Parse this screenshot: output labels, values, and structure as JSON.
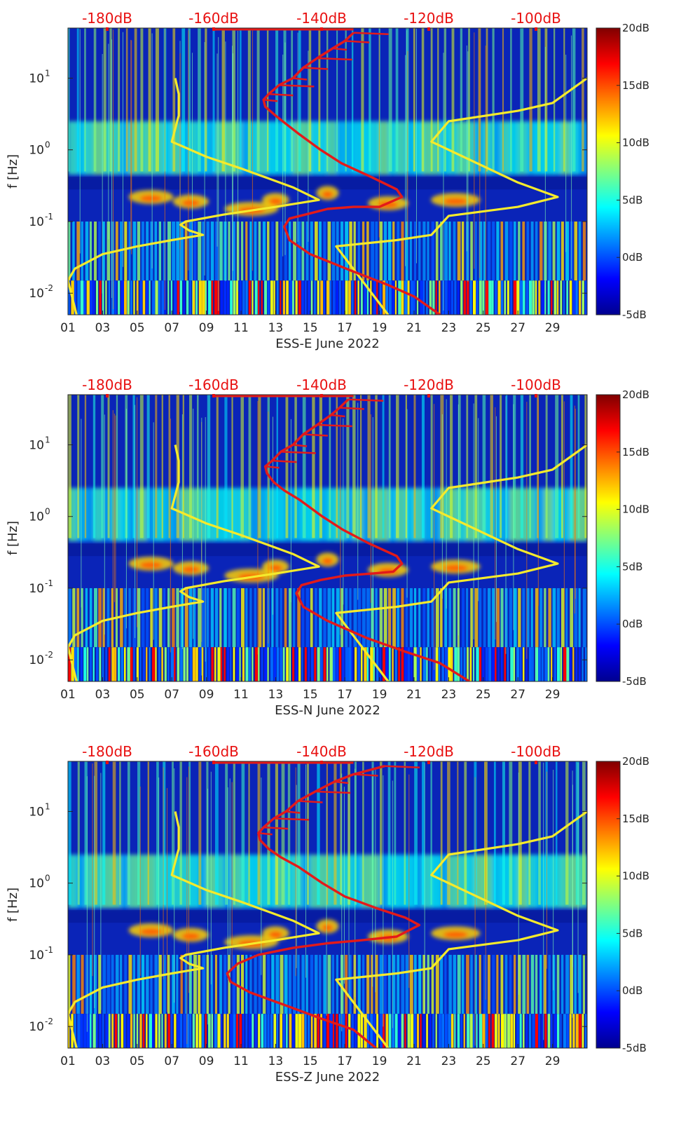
{
  "colormap": [
    "#00008f",
    "#0000ff",
    "#0080ff",
    "#00ffff",
    "#80ff80",
    "#ffff00",
    "#ff8000",
    "#ff0000",
    "#800000"
  ],
  "curve_colors": {
    "yellow": "#f5ea2c",
    "red": "#e31a1a"
  },
  "chart_data": [
    {
      "type": "heatmap",
      "xlabel": "ESS-E June 2022",
      "ylabel": "f [Hz]",
      "x_ticks": [
        "01",
        "03",
        "05",
        "07",
        "09",
        "11",
        "13",
        "15",
        "17",
        "19",
        "21",
        "23",
        "25",
        "27",
        "29"
      ],
      "x_range_days": [
        1,
        31
      ],
      "y_scale": "log",
      "y_ticks": [
        "10^-2",
        "10^-1",
        "10^0",
        "10^1"
      ],
      "y_range_hz": [
        0.005,
        50
      ],
      "top_ticks": [
        "-180dB",
        "-160dB",
        "-140dB",
        "-120dB",
        "-100dB"
      ],
      "colorbar": {
        "ticks": [
          "20dB",
          "15dB",
          "10dB",
          "5dB",
          "0dB",
          "-5dB"
        ],
        "range": [
          -5,
          20
        ]
      },
      "yellow_curve": [
        [
          1.5,
          0.005
        ],
        [
          1.0,
          0.015
        ],
        [
          1.4,
          0.022
        ],
        [
          3.0,
          0.035
        ],
        [
          5.0,
          0.045
        ],
        [
          7.0,
          0.055
        ],
        [
          8.8,
          0.065
        ],
        [
          8.0,
          0.075
        ],
        [
          7.5,
          0.09
        ],
        [
          7.8,
          0.1
        ],
        [
          10,
          0.125
        ],
        [
          13,
          0.16
        ],
        [
          15.5,
          0.2
        ],
        [
          14,
          0.3
        ],
        [
          11,
          0.55
        ],
        [
          9,
          0.8
        ],
        [
          7.0,
          1.3
        ],
        [
          7.4,
          3
        ],
        [
          7.4,
          6
        ],
        [
          7.2,
          10
        ]
      ],
      "yellow_curve_right": [
        [
          19.5,
          0.005
        ],
        [
          18,
          0.015
        ],
        [
          16.5,
          0.045
        ],
        [
          20,
          0.055
        ],
        [
          22,
          0.065
        ],
        [
          23,
          0.12
        ],
        [
          27,
          0.16
        ],
        [
          29.3,
          0.22
        ],
        [
          27,
          0.35
        ],
        [
          22,
          1.3
        ],
        [
          23,
          2.5
        ],
        [
          27,
          3.5
        ],
        [
          29,
          4.5
        ],
        [
          31,
          10
        ]
      ],
      "red_curve": [
        [
          22.5,
          0.005
        ],
        [
          21,
          0.009
        ],
        [
          19.5,
          0.013
        ],
        [
          17.5,
          0.02
        ],
        [
          15,
          0.035
        ],
        [
          13.8,
          0.055
        ],
        [
          13.5,
          0.085
        ],
        [
          13.8,
          0.11
        ],
        [
          15,
          0.13
        ],
        [
          16,
          0.15
        ],
        [
          17.5,
          0.16
        ],
        [
          19,
          0.16
        ],
        [
          20.3,
          0.22
        ],
        [
          20.0,
          0.28
        ],
        [
          18.5,
          0.42
        ],
        [
          16.8,
          0.65
        ],
        [
          15.6,
          1.0
        ],
        [
          14.3,
          1.7
        ],
        [
          13.6,
          2.3
        ],
        [
          13.0,
          3
        ],
        [
          12.4,
          4
        ],
        [
          12.3,
          5
        ],
        [
          12.6,
          6
        ],
        [
          13.2,
          8
        ],
        [
          14,
          10
        ],
        [
          14.6,
          14
        ],
        [
          15.4,
          19
        ],
        [
          16.3,
          26
        ],
        [
          17.0,
          33
        ],
        [
          17.5,
          43
        ]
      ]
    },
    {
      "type": "heatmap",
      "xlabel": "ESS-N June 2022",
      "ylabel": "f [Hz]",
      "x_ticks": [
        "01",
        "03",
        "05",
        "07",
        "09",
        "11",
        "13",
        "15",
        "17",
        "19",
        "21",
        "23",
        "25",
        "27",
        "29"
      ],
      "x_range_days": [
        1,
        31
      ],
      "y_scale": "log",
      "y_ticks": [
        "10^-2",
        "10^-1",
        "10^0",
        "10^1"
      ],
      "y_range_hz": [
        0.005,
        50
      ],
      "top_ticks": [
        "-180dB",
        "-160dB",
        "-140dB",
        "-120dB",
        "-100dB"
      ],
      "colorbar": {
        "ticks": [
          "20dB",
          "15dB",
          "10dB",
          "5dB",
          "0dB",
          "-5dB"
        ],
        "range": [
          -5,
          20
        ]
      },
      "yellow_curve": [
        [
          1.5,
          0.005
        ],
        [
          1.0,
          0.015
        ],
        [
          1.4,
          0.022
        ],
        [
          3.0,
          0.035
        ],
        [
          5.0,
          0.045
        ],
        [
          7.0,
          0.055
        ],
        [
          8.8,
          0.065
        ],
        [
          8.0,
          0.075
        ],
        [
          7.5,
          0.09
        ],
        [
          7.8,
          0.1
        ],
        [
          10,
          0.125
        ],
        [
          13,
          0.16
        ],
        [
          15.5,
          0.2
        ],
        [
          14,
          0.3
        ],
        [
          11,
          0.55
        ],
        [
          9,
          0.8
        ],
        [
          7.0,
          1.3
        ],
        [
          7.4,
          3
        ],
        [
          7.4,
          6
        ],
        [
          7.2,
          10
        ]
      ],
      "yellow_curve_right": [
        [
          19.5,
          0.005
        ],
        [
          18,
          0.015
        ],
        [
          16.5,
          0.045
        ],
        [
          20,
          0.055
        ],
        [
          22,
          0.065
        ],
        [
          23,
          0.12
        ],
        [
          27,
          0.16
        ],
        [
          29.3,
          0.22
        ],
        [
          27,
          0.35
        ],
        [
          22,
          1.3
        ],
        [
          23,
          2.5
        ],
        [
          27,
          3.5
        ],
        [
          29,
          4.5
        ],
        [
          31,
          10
        ]
      ],
      "red_curve": [
        [
          24.2,
          0.005
        ],
        [
          22.5,
          0.009
        ],
        [
          20.5,
          0.013
        ],
        [
          18.3,
          0.02
        ],
        [
          16,
          0.035
        ],
        [
          14.6,
          0.055
        ],
        [
          14.2,
          0.085
        ],
        [
          14.5,
          0.11
        ],
        [
          15.6,
          0.13
        ],
        [
          17,
          0.15
        ],
        [
          18.6,
          0.16
        ],
        [
          19.8,
          0.17
        ],
        [
          20.3,
          0.22
        ],
        [
          20.0,
          0.28
        ],
        [
          18.4,
          0.42
        ],
        [
          16.9,
          0.65
        ],
        [
          15.7,
          1.0
        ],
        [
          14.4,
          1.7
        ],
        [
          13.5,
          2.3
        ],
        [
          12.9,
          3
        ],
        [
          12.5,
          4
        ],
        [
          12.4,
          5
        ],
        [
          12.8,
          6
        ],
        [
          13.3,
          8
        ],
        [
          14,
          10
        ],
        [
          14.6,
          14
        ],
        [
          15.4,
          19
        ],
        [
          16.2,
          26
        ],
        [
          16.7,
          33
        ],
        [
          17.2,
          43
        ]
      ]
    },
    {
      "type": "heatmap",
      "xlabel": "ESS-Z June 2022",
      "ylabel": "f [Hz]",
      "x_ticks": [
        "01",
        "03",
        "05",
        "07",
        "09",
        "11",
        "13",
        "15",
        "17",
        "19",
        "21",
        "23",
        "25",
        "27",
        "29"
      ],
      "x_range_days": [
        1,
        31
      ],
      "y_scale": "log",
      "y_ticks": [
        "10^-2",
        "10^-1",
        "10^0",
        "10^1"
      ],
      "y_range_hz": [
        0.005,
        50
      ],
      "top_ticks": [
        "-180dB",
        "-160dB",
        "-140dB",
        "-120dB",
        "-100dB"
      ],
      "colorbar": {
        "ticks": [
          "20dB",
          "15dB",
          "10dB",
          "5dB",
          "0dB",
          "-5dB"
        ],
        "range": [
          -5,
          20
        ]
      },
      "yellow_curve": [
        [
          1.5,
          0.005
        ],
        [
          1.0,
          0.015
        ],
        [
          1.4,
          0.022
        ],
        [
          3.0,
          0.035
        ],
        [
          5.0,
          0.045
        ],
        [
          7.0,
          0.055
        ],
        [
          8.8,
          0.065
        ],
        [
          8.0,
          0.075
        ],
        [
          7.5,
          0.09
        ],
        [
          7.8,
          0.1
        ],
        [
          10,
          0.125
        ],
        [
          13,
          0.16
        ],
        [
          15.5,
          0.2
        ],
        [
          14,
          0.3
        ],
        [
          11,
          0.55
        ],
        [
          9,
          0.8
        ],
        [
          7.0,
          1.3
        ],
        [
          7.4,
          3
        ],
        [
          7.4,
          6
        ],
        [
          7.2,
          10
        ]
      ],
      "yellow_curve_right": [
        [
          19.5,
          0.005
        ],
        [
          18,
          0.015
        ],
        [
          16.5,
          0.045
        ],
        [
          20,
          0.055
        ],
        [
          22,
          0.065
        ],
        [
          23,
          0.12
        ],
        [
          27,
          0.16
        ],
        [
          29.3,
          0.22
        ],
        [
          27,
          0.35
        ],
        [
          22,
          1.3
        ],
        [
          23,
          2.5
        ],
        [
          27,
          3.5
        ],
        [
          29,
          4.5
        ],
        [
          31,
          10
        ]
      ],
      "red_curve": [
        [
          18.8,
          0.005
        ],
        [
          17.5,
          0.009
        ],
        [
          15.6,
          0.013
        ],
        [
          13.5,
          0.02
        ],
        [
          11.5,
          0.03
        ],
        [
          10.4,
          0.042
        ],
        [
          10.2,
          0.055
        ],
        [
          10.8,
          0.075
        ],
        [
          12,
          0.1
        ],
        [
          14,
          0.125
        ],
        [
          16,
          0.145
        ],
        [
          18,
          0.16
        ],
        [
          20,
          0.18
        ],
        [
          21.3,
          0.26
        ],
        [
          20.5,
          0.33
        ],
        [
          18.8,
          0.45
        ],
        [
          17.0,
          0.65
        ],
        [
          15.7,
          1.0
        ],
        [
          14.3,
          1.7
        ],
        [
          13.3,
          2.3
        ],
        [
          12.6,
          3
        ],
        [
          12.1,
          4
        ],
        [
          12.0,
          5
        ],
        [
          12.3,
          6
        ],
        [
          12.9,
          8
        ],
        [
          13.6,
          10
        ],
        [
          14.3,
          14
        ],
        [
          15.3,
          19
        ],
        [
          16.4,
          26
        ],
        [
          17.5,
          33
        ],
        [
          19.3,
          43
        ]
      ]
    }
  ]
}
